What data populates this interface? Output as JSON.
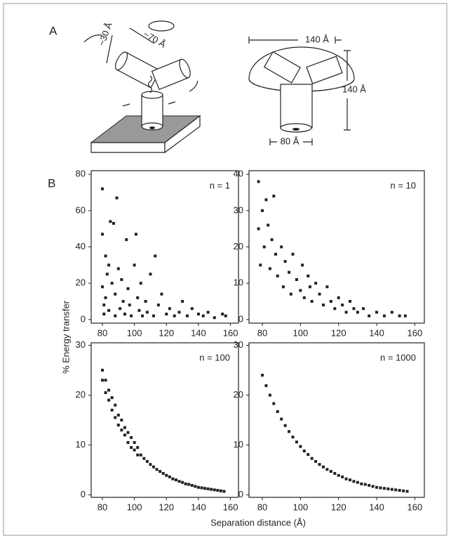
{
  "panel_labels": [
    "A",
    "B"
  ],
  "diagram": {
    "left_labels": [
      "~70 Å",
      "~30 Å"
    ],
    "right_labels": [
      "140 Å",
      "140 Å",
      "80 Å"
    ]
  },
  "shared_axes": {
    "ylabel": "% Energy transfer",
    "xlabel": "Separation distance (Å)"
  },
  "chart_data": [
    {
      "type": "scatter",
      "annotation": "n = 1",
      "color": "#222222",
      "x": [
        80,
        80,
        80,
        81,
        81,
        82,
        82,
        83,
        84,
        84,
        85,
        86,
        87,
        88,
        88,
        89,
        90,
        91,
        92,
        93,
        94,
        95,
        96,
        97,
        98,
        100,
        101,
        102,
        103,
        104,
        105,
        107,
        108,
        110,
        112,
        113,
        115,
        117,
        120,
        122,
        125,
        128,
        130,
        133,
        136,
        140,
        143,
        146,
        150,
        155,
        157
      ],
      "values": [
        72,
        47,
        18,
        8,
        3,
        35,
        12,
        25,
        5,
        30,
        54,
        20,
        53,
        14,
        2,
        67,
        28,
        6,
        22,
        10,
        3,
        44,
        17,
        8,
        2,
        30,
        47,
        12,
        5,
        20,
        2,
        10,
        4,
        25,
        2,
        35,
        8,
        14,
        3,
        6,
        2,
        4,
        10,
        2,
        6,
        3,
        2,
        4,
        1,
        3,
        2
      ],
      "xlim": [
        73,
        165
      ],
      "xticks": [
        80,
        100,
        120,
        140,
        160
      ],
      "ylim": [
        -2,
        82
      ],
      "yticks": [
        0,
        20,
        40,
        60,
        80
      ]
    },
    {
      "type": "scatter",
      "annotation": "n = 10",
      "color": "#222222",
      "x": [
        78,
        78,
        79,
        80,
        81,
        82,
        83,
        84,
        85,
        86,
        87,
        88,
        90,
        91,
        92,
        94,
        95,
        96,
        98,
        100,
        101,
        102,
        104,
        105,
        106,
        108,
        110,
        112,
        114,
        116,
        118,
        120,
        122,
        124,
        126,
        128,
        130,
        133,
        136,
        140,
        144,
        148,
        152,
        155
      ],
      "values": [
        38,
        25,
        15,
        30,
        20,
        33,
        26,
        14,
        22,
        34,
        18,
        12,
        20,
        9,
        16,
        13,
        7,
        18,
        11,
        8,
        15,
        6,
        12,
        9,
        5,
        10,
        7,
        4,
        9,
        5,
        3,
        6,
        4,
        2,
        5,
        3,
        2,
        3,
        1,
        2,
        1,
        2,
        1,
        1
      ],
      "xlim": [
        73,
        165
      ],
      "xticks": [
        80,
        100,
        120,
        140,
        160
      ],
      "ylim": [
        -1,
        41
      ],
      "yticks": [
        0,
        10,
        20,
        30,
        40
      ]
    },
    {
      "type": "scatter",
      "annotation": "n = 100",
      "color": "#222222",
      "x": [
        80,
        80,
        82,
        82,
        84,
        84,
        86,
        86,
        88,
        88,
        90,
        90,
        92,
        92,
        94,
        94,
        96,
        96,
        98,
        98,
        100,
        100,
        102,
        102,
        104,
        106,
        108,
        110,
        112,
        114,
        116,
        118,
        120,
        122,
        124,
        126,
        128,
        130,
        132,
        134,
        136,
        138,
        140,
        142,
        144,
        146,
        148,
        150,
        152,
        154,
        156
      ],
      "values": [
        25,
        23,
        23,
        20.5,
        21,
        19,
        19.5,
        17,
        18,
        15.5,
        16,
        14,
        15,
        13,
        13.5,
        12,
        12.5,
        10.5,
        11.5,
        9.5,
        10.5,
        9,
        9.5,
        8,
        8,
        7.3,
        6.7,
        6.1,
        5.6,
        5.1,
        4.7,
        4.3,
        3.9,
        3.6,
        3.2,
        3,
        2.7,
        2.5,
        2.2,
        2.1,
        1.9,
        1.7,
        1.5,
        1.4,
        1.3,
        1.2,
        1.1,
        1,
        0.9,
        0.8,
        0.7
      ],
      "xlim": [
        73,
        165
      ],
      "xticks": [
        80,
        100,
        120,
        140,
        160
      ],
      "ylim": [
        -0.5,
        30.5
      ],
      "yticks": [
        0,
        10,
        20,
        30
      ]
    },
    {
      "type": "scatter",
      "annotation": "n = 1000",
      "color": "#222222",
      "x": [
        80,
        82,
        84,
        86,
        88,
        90,
        92,
        94,
        96,
        98,
        100,
        102,
        104,
        106,
        108,
        110,
        112,
        114,
        116,
        118,
        120,
        122,
        124,
        126,
        128,
        130,
        132,
        134,
        136,
        138,
        140,
        142,
        144,
        146,
        148,
        150,
        152,
        154,
        156
      ],
      "values": [
        24,
        21.9,
        20,
        18.3,
        16.7,
        15.2,
        13.9,
        12.7,
        11.6,
        10.6,
        9.7,
        8.8,
        8.1,
        7.3,
        6.7,
        6.1,
        5.6,
        5.1,
        4.7,
        4.3,
        3.9,
        3.6,
        3.2,
        3,
        2.7,
        2.5,
        2.2,
        2.1,
        1.9,
        1.7,
        1.5,
        1.4,
        1.3,
        1.2,
        1.1,
        1,
        0.9,
        0.8,
        0.7
      ],
      "xlim": [
        73,
        165
      ],
      "xticks": [
        80,
        100,
        120,
        140,
        160
      ],
      "ylim": [
        -0.5,
        30.5
      ],
      "yticks": [
        0,
        10,
        20,
        30
      ]
    }
  ]
}
